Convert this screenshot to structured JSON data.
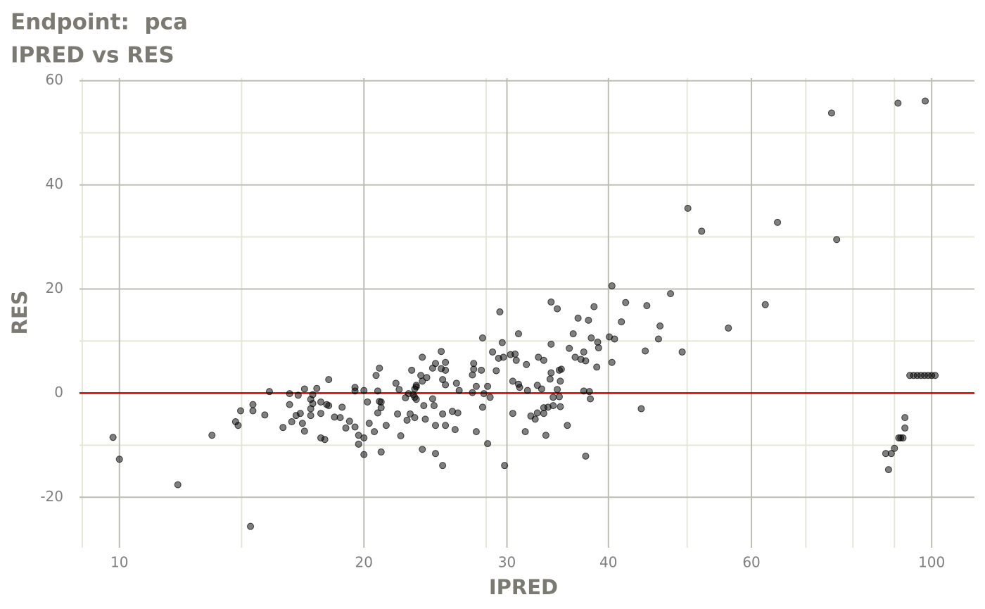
{
  "chart_data": {
    "type": "scatter",
    "title": "Endpoint:  pca",
    "subtitle": "IPRED vs RES",
    "x_label": "IPRED",
    "y_label": "RES",
    "x_log": true,
    "xlim": [
      8.93,
      112.9
    ],
    "ylim": [
      -29.7,
      60.5
    ],
    "xticks": [
      10,
      20,
      30,
      40,
      60,
      100
    ],
    "yticks": [
      -20,
      0,
      20,
      40,
      60
    ],
    "x_minor_grid": [
      9,
      14.14,
      28.28,
      50,
      70,
      80,
      90
    ],
    "y_minor_grid": [
      -10,
      10,
      30,
      50
    ],
    "grid": true,
    "point_color": "#000000",
    "hline": {
      "value": 0,
      "color": "#cc0000"
    },
    "series": [
      {
        "name": "RES",
        "color": "#000000",
        "x": [
          9.82,
          10,
          11.8,
          13.0,
          13.9,
          14.0,
          14.1,
          14.5,
          14.6,
          14.6,
          15.1,
          15.3,
          15.9,
          16.2,
          16.2,
          16.3,
          16.5,
          16.6,
          16.7,
          16.8,
          16.9,
          16.9,
          17.2,
          17.2,
          17.2,
          17.3,
          17.3,
          17.5,
          17.7,
          17.7,
          17.7,
          17.9,
          18.0,
          18.1,
          18.1,
          18.4,
          18.7,
          18.8,
          19.0,
          19.2,
          19.5,
          19.5,
          19.5,
          19.7,
          19.7,
          20.0,
          20.0,
          20.0,
          20.2,
          20.3,
          20.6,
          20.7,
          20.8,
          20.8,
          20.9,
          20.9,
          21.0,
          21.0,
          21.0,
          21.3,
          21.9,
          22.0,
          22.1,
          22.2,
          22.5,
          22.6,
          22.7,
          22.8,
          22.9,
          23.0,
          23.1,
          23.1,
          23.1,
          23.2,
          23.2,
          23.2,
          23.5,
          23.6,
          23.6,
          23.6,
          23.7,
          23.8,
          23.9,
          24.3,
          24.3,
          24.4,
          24.5,
          24.5,
          24.5,
          24.9,
          24.9,
          25.0,
          25.0,
          25.0,
          25.2,
          25.2,
          25.2,
          25.2,
          25.7,
          25.9,
          26.0,
          26.1,
          26.2,
          27.2,
          27.2,
          27.3,
          27.3,
          27.5,
          27.5,
          27.9,
          28.0,
          28.0,
          28.1,
          28.4,
          28.4,
          28.6,
          28.8,
          29.1,
          29.3,
          29.4,
          29.6,
          29.7,
          29.8,
          30.3,
          30.5,
          30.5,
          30.7,
          30.8,
          31.0,
          31.0,
          31.1,
          31.6,
          31.7,
          31.8,
          32.1,
          32.5,
          32.7,
          32.7,
          32.8,
          33.1,
          33.3,
          33.3,
          33.3,
          33.5,
          33.7,
          33.9,
          34.0,
          34.0,
          34.0,
          34.2,
          34.2,
          34.6,
          34.6,
          34.8,
          34.8,
          34.9,
          34.9,
          35.0,
          35.6,
          35.8,
          36.2,
          36.4,
          36.7,
          37.0,
          37.3,
          37.3,
          37.5,
          37.5,
          37.8,
          37.9,
          38.0,
          38.1,
          38.4,
          38.7,
          38.8,
          38.9,
          40.1,
          40.4,
          40.4,
          40.7,
          41.5,
          42.0,
          43.9,
          44.4,
          44.6,
          46.1,
          46.3,
          47.7,
          49.3,
          50.1,
          52.1,
          56.2,
          62.4,
          64.6,
          75.3,
          76.4,
          87.8,
          88.5,
          89.2,
          90.0,
          90.9,
          91.1,
          91.6,
          92.2,
          92.7,
          92.7,
          98.2,
          94,
          95,
          96,
          97,
          98,
          99,
          100,
          101
        ],
        "values": [
          -8.5,
          -12.7,
          -17.6,
          -8.1,
          -5.5,
          -6.2,
          -3.4,
          -25.6,
          -2.2,
          -3.4,
          -4.2,
          0.3,
          -6.6,
          -0.1,
          -2.2,
          -5.5,
          -4.3,
          -0.4,
          -3.9,
          -5.8,
          -7.3,
          0.8,
          -1.2,
          -3.0,
          -4.3,
          -2.0,
          -0.3,
          0.9,
          -3.9,
          -8.6,
          -1.7,
          -8.9,
          -2.2,
          -2.4,
          2.6,
          -4.6,
          -4.7,
          -2.7,
          -6.7,
          -5.4,
          1.1,
          0.4,
          -6.5,
          -9.8,
          -8.1,
          -8.6,
          -11.8,
          0.5,
          -1.7,
          -5.8,
          -7.4,
          3.4,
          0.4,
          -3.8,
          4.8,
          -1.6,
          -11.3,
          -2.8,
          -1.7,
          -6.2,
          1.9,
          -4.0,
          0.7,
          -8.2,
          -0.9,
          -5.2,
          -0.1,
          -4.0,
          4.4,
          -0.3,
          -4.7,
          0.8,
          -0.8,
          -1.2,
          1.2,
          1.5,
          3.4,
          6.9,
          -10.8,
          2.3,
          -2.4,
          -5.0,
          3.0,
          4.8,
          -1.1,
          -2.4,
          -11.6,
          5.7,
          -6.2,
          4.7,
          8.0,
          2.6,
          -4.0,
          -13.9,
          1.6,
          5.9,
          4.4,
          -6.2,
          -3.5,
          -7.0,
          1.9,
          -3.8,
          0.5,
          3.5,
          0.1,
          4.6,
          5.7,
          1.3,
          -7.4,
          4.4,
          10.6,
          -2.7,
          -0.1,
          -9.7,
          1.3,
          -0.8,
          7.9,
          4.3,
          6.7,
          15.6,
          9.7,
          6.9,
          -13.9,
          7.4,
          2.3,
          -3.9,
          7.5,
          6.3,
          11.4,
          1.7,
          1.1,
          -7.4,
          5.5,
          0.5,
          -4.4,
          -5.0,
          -3.8,
          1.5,
          6.9,
          0.8,
          -3.9,
          -2.8,
          6.3,
          -8.1,
          -2.7,
          2.7,
          17.5,
          9.4,
          3.9,
          -0.8,
          -2.4,
          16.2,
          0.7,
          4.4,
          -0.7,
          2.3,
          -2.6,
          4.6,
          -6.2,
          8.6,
          11.4,
          6.9,
          14.4,
          6.5,
          7.9,
          0.4,
          -12.1,
          6.2,
          14.0,
          0.3,
          -1.1,
          10.6,
          16.6,
          5.0,
          9.8,
          8.7,
          10.8,
          20.6,
          5.9,
          10.4,
          13.7,
          17.4,
          -3.0,
          8.1,
          16.8,
          10.4,
          12.9,
          19.1,
          7.9,
          35.5,
          31.1,
          12.5,
          17.0,
          32.8,
          53.8,
          29.5,
          -11.6,
          -14.7,
          -11.6,
          -10.6,
          55.7,
          -8.6,
          -8.6,
          -8.6,
          -4.7,
          -6.7,
          56.1,
          3.4,
          3.4,
          3.4,
          3.4,
          3.4,
          3.4,
          3.4,
          3.4
        ]
      }
    ]
  }
}
